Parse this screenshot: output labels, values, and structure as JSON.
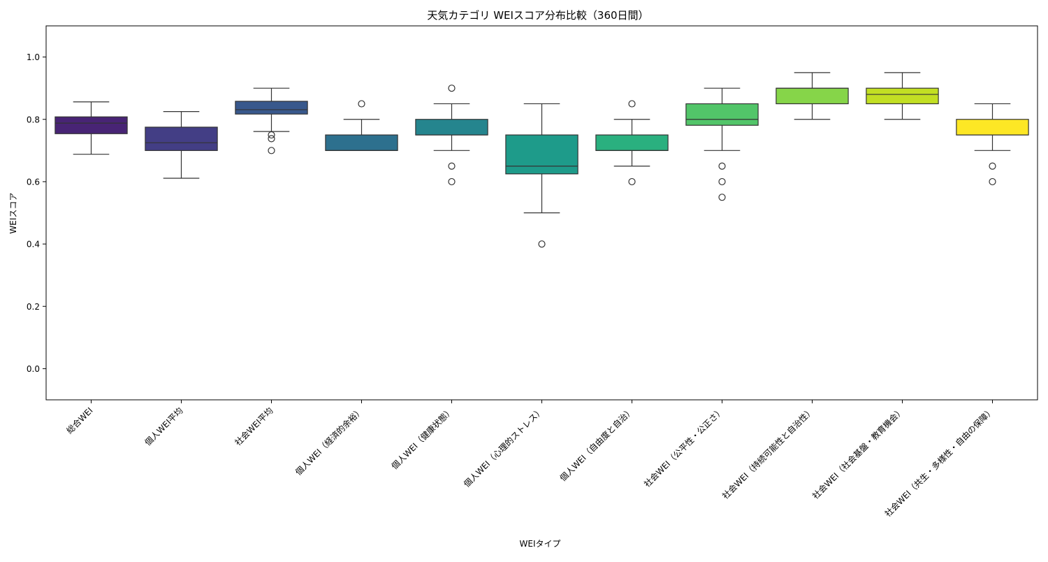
{
  "chart_data": {
    "type": "box",
    "title": "天気カテゴリ WEIスコア分布比較（360日間）",
    "xlabel": "WEIタイプ",
    "ylabel": "WEIスコア",
    "ylim": [
      -0.1,
      1.1
    ],
    "yticks": [
      0.0,
      0.2,
      0.4,
      0.6,
      0.8,
      1.0
    ],
    "ytick_labels": [
      "0.0",
      "0.2",
      "0.4",
      "0.6",
      "0.8",
      "1.0"
    ],
    "grid": false,
    "categories": [
      "総合WEI",
      "個人WEI平均",
      "社会WEI平均",
      "個人WEI（経済的余裕）",
      "個人WEI（健康状態）",
      "個人WEI（心理的ストレス）",
      "個人WEI（自由度と自治）",
      "社会WEI（公平性・公正さ）",
      "社会WEI（持続可能性と自治性）",
      "社会WEI（社会基盤・教育機会）",
      "社会WEI（共生・多様性・自由の保障）"
    ],
    "colors": [
      "#482475",
      "#433e85",
      "#38588c",
      "#2d708e",
      "#25858e",
      "#1e9b8a",
      "#2ab07f",
      "#52c569",
      "#86d549",
      "#c2df23",
      "#fde725"
    ],
    "boxes": [
      {
        "whisker_low": 0.688,
        "q1": 0.754,
        "median": 0.788,
        "q3": 0.808,
        "whisker_high": 0.856,
        "outliers": []
      },
      {
        "whisker_low": 0.611,
        "q1": 0.7,
        "median": 0.725,
        "q3": 0.775,
        "whisker_high": 0.825,
        "outliers": []
      },
      {
        "whisker_low": 0.761,
        "q1": 0.817,
        "median": 0.831,
        "q3": 0.858,
        "whisker_high": 0.9,
        "outliers": [
          0.75,
          0.738,
          0.7
        ]
      },
      {
        "whisker_low": 0.7,
        "q1": 0.7,
        "median": 0.7,
        "q3": 0.75,
        "whisker_high": 0.8,
        "outliers": [
          0.85
        ]
      },
      {
        "whisker_low": 0.7,
        "q1": 0.75,
        "median": 0.75,
        "q3": 0.8,
        "whisker_high": 0.85,
        "outliers": [
          0.9,
          0.65,
          0.6
        ]
      },
      {
        "whisker_low": 0.5,
        "q1": 0.625,
        "median": 0.65,
        "q3": 0.75,
        "whisker_high": 0.85,
        "outliers": [
          0.4
        ]
      },
      {
        "whisker_low": 0.65,
        "q1": 0.7,
        "median": 0.7,
        "q3": 0.75,
        "whisker_high": 0.8,
        "outliers": [
          0.85,
          0.6
        ]
      },
      {
        "whisker_low": 0.7,
        "q1": 0.781,
        "median": 0.8,
        "q3": 0.85,
        "whisker_high": 0.9,
        "outliers": [
          0.65,
          0.6,
          0.55
        ]
      },
      {
        "whisker_low": 0.8,
        "q1": 0.85,
        "median": 0.9,
        "q3": 0.9,
        "whisker_high": 0.95,
        "outliers": []
      },
      {
        "whisker_low": 0.8,
        "q1": 0.85,
        "median": 0.88,
        "q3": 0.9,
        "whisker_high": 0.95,
        "outliers": []
      },
      {
        "whisker_low": 0.7,
        "q1": 0.75,
        "median": 0.75,
        "q3": 0.8,
        "whisker_high": 0.85,
        "outliers": [
          0.65,
          0.6
        ]
      }
    ]
  }
}
